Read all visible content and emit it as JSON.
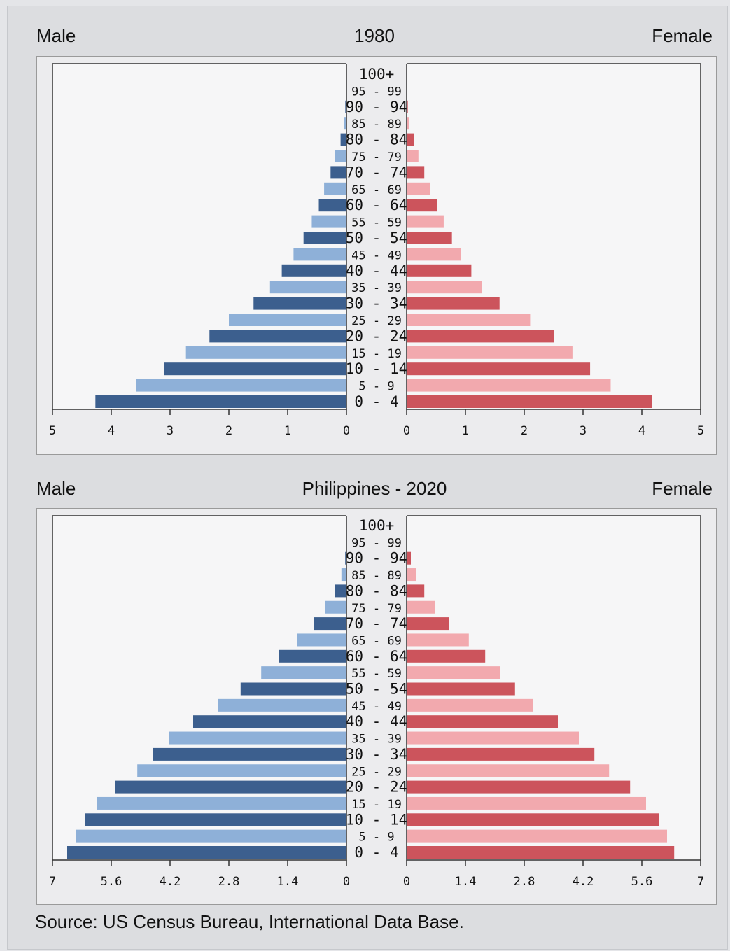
{
  "colors": {
    "male_dark": "#3c5f8e",
    "male_light": "#8eb0d8",
    "female_dark": "#cc545c",
    "female_light": "#f2a9ae",
    "panel_bg": "#ececee"
  },
  "source": "Source: US Census Bureau, International Data Base.",
  "chart_data": [
    {
      "type": "bar",
      "title": "1980",
      "left_label": "Male",
      "right_label": "Female",
      "age_groups": [
        "100+",
        "95 - 99",
        "90 - 94",
        "85 - 89",
        "80 - 84",
        "75 - 79",
        "70 - 74",
        "65 - 69",
        "60 - 64",
        "55 - 59",
        "50 - 54",
        "45 - 49",
        "40 - 44",
        "35 - 39",
        "30 - 34",
        "25 - 29",
        "20 - 24",
        "15 - 19",
        "10 - 14",
        "5 - 9",
        "0 - 4"
      ],
      "xlim": [
        0,
        5
      ],
      "ticks": [
        "5",
        "4",
        "3",
        "2",
        "1",
        "0"
      ],
      "ticks_right": [
        "0",
        "1",
        "2",
        "3",
        "4",
        "5"
      ],
      "series": [
        {
          "name": "Male",
          "values": [
            0,
            0,
            0.02,
            0.04,
            0.1,
            0.2,
            0.27,
            0.38,
            0.47,
            0.59,
            0.73,
            0.9,
            1.1,
            1.3,
            1.58,
            2.0,
            2.33,
            2.73,
            3.1,
            3.58,
            4.27
          ]
        },
        {
          "name": "Female",
          "values": [
            0,
            0,
            0.02,
            0.04,
            0.12,
            0.2,
            0.3,
            0.4,
            0.52,
            0.63,
            0.77,
            0.92,
            1.1,
            1.28,
            1.58,
            2.1,
            2.5,
            2.82,
            3.12,
            3.47,
            4.17
          ]
        }
      ]
    },
    {
      "type": "bar",
      "title": "Philippines - 2020",
      "left_label": "Male",
      "right_label": "Female",
      "age_groups": [
        "100+",
        "95 - 99",
        "90 - 94",
        "85 - 89",
        "80 - 84",
        "75 - 79",
        "70 - 74",
        "65 - 69",
        "60 - 64",
        "55 - 59",
        "50 - 54",
        "45 - 49",
        "40 - 44",
        "35 - 39",
        "30 - 34",
        "25 - 29",
        "20 - 24",
        "15 - 19",
        "10 - 14",
        "5 - 9",
        "0 - 4"
      ],
      "xlim": [
        0,
        7
      ],
      "ticks": [
        "7",
        "5.6",
        "4.2",
        "2.8",
        "1.4",
        "0"
      ],
      "ticks_right": [
        "0",
        "1.4",
        "2.8",
        "4.2",
        "5.6",
        "7"
      ],
      "series": [
        {
          "name": "Male",
          "values": [
            0,
            0,
            0.03,
            0.12,
            0.27,
            0.5,
            0.78,
            1.18,
            1.6,
            2.03,
            2.52,
            3.05,
            3.65,
            4.23,
            4.6,
            4.98,
            5.5,
            5.95,
            6.22,
            6.45,
            6.65
          ]
        },
        {
          "name": "Female",
          "values": [
            0,
            0,
            0.1,
            0.23,
            0.42,
            0.67,
            1.0,
            1.48,
            1.87,
            2.23,
            2.58,
            3.0,
            3.6,
            4.1,
            4.47,
            4.82,
            5.32,
            5.7,
            6.0,
            6.2,
            6.37
          ]
        }
      ]
    }
  ]
}
